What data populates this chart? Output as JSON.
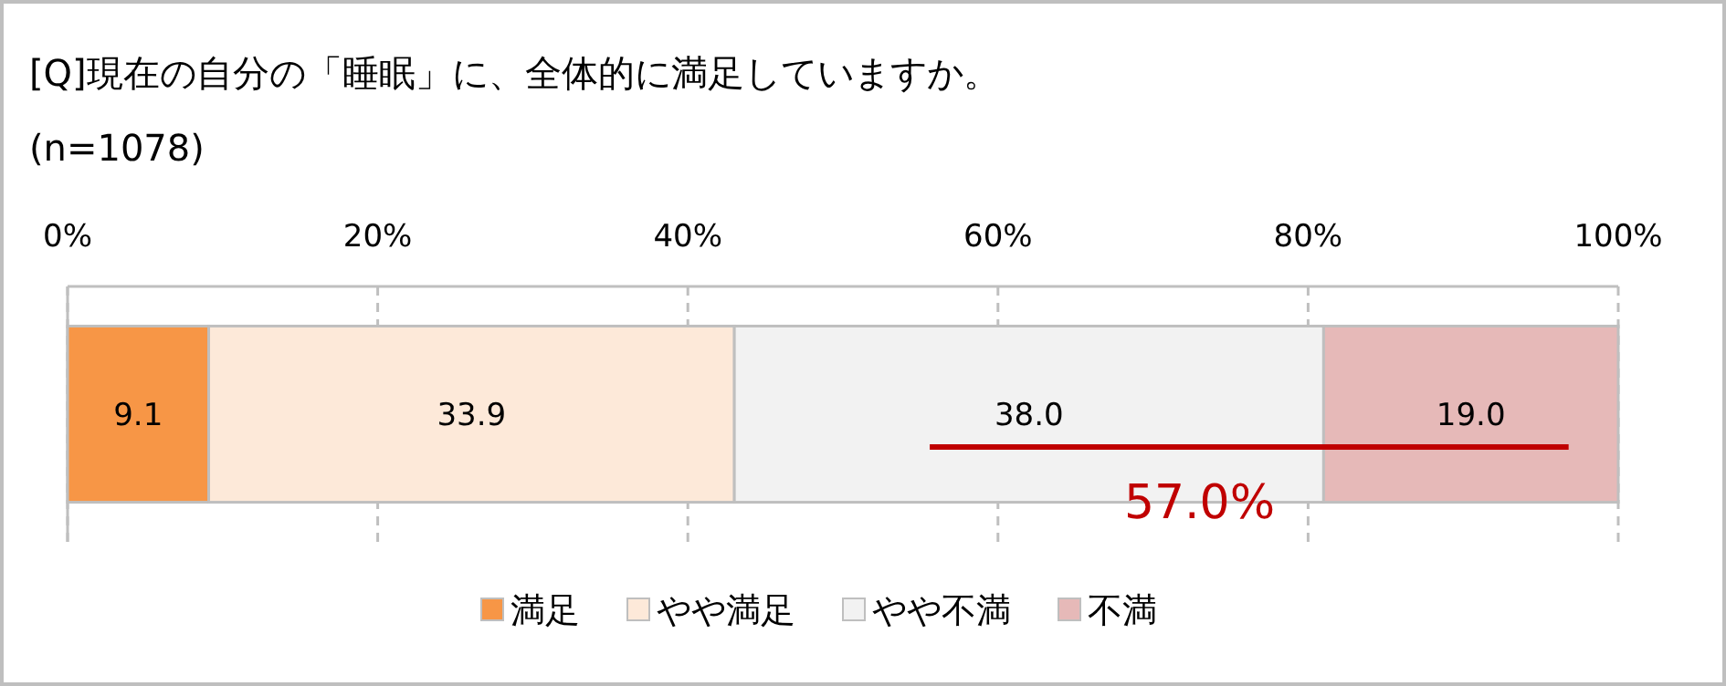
{
  "chart_data": {
    "type": "bar",
    "orientation": "horizontal",
    "stacked": true,
    "title": "[Q]現在の自分の「睡眠」に、全体的に満足していますか。",
    "subtitle": "(n=1078)",
    "categories": [
      null
    ],
    "series": [
      {
        "name": "満足",
        "color": "#f79646",
        "values": [
          9.1
        ],
        "value_labels": [
          "9.1"
        ]
      },
      {
        "name": "やや満足",
        "color": "#fde9d9",
        "values": [
          33.9
        ],
        "value_labels": [
          "33.9"
        ]
      },
      {
        "name": "やや不満",
        "color": "#f2f2f2",
        "values": [
          38.0
        ],
        "value_labels": [
          "38.0"
        ]
      },
      {
        "name": "不満",
        "color": "#e6b9b8",
        "values": [
          19.0
        ],
        "value_labels": [
          "19.0"
        ]
      }
    ],
    "xlim": [
      0,
      100
    ],
    "xticks": [
      {
        "value": 0,
        "label": "0%"
      },
      {
        "value": 20,
        "label": "20%"
      },
      {
        "value": 40,
        "label": "40%"
      },
      {
        "value": 60,
        "label": "60%"
      },
      {
        "value": 80,
        "label": "80%"
      },
      {
        "value": 100,
        "label": "100%"
      }
    ],
    "grid": "x",
    "legend": "bottom",
    "annotations": [
      "57.0%"
    ]
  }
}
